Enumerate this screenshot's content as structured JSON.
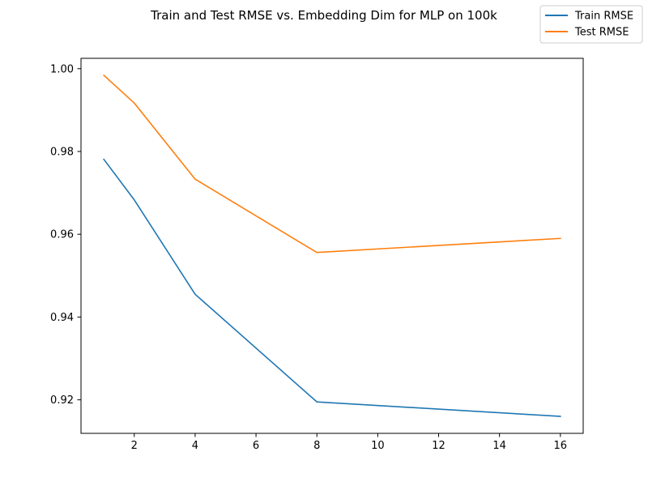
{
  "chart_data": {
    "type": "line",
    "title": "Train and Test RMSE vs. Embedding Dim for MLP on 100k",
    "xlabel": "",
    "ylabel": "",
    "x": [
      1,
      2,
      4,
      8,
      16
    ],
    "series": [
      {
        "name": "Train RMSE",
        "color": "#1f77b4",
        "values": [
          0.9781,
          0.9683,
          0.9455,
          0.9195,
          0.916
        ]
      },
      {
        "name": "Test RMSE",
        "color": "#ff7f0e",
        "values": [
          0.9984,
          0.9917,
          0.9733,
          0.9556,
          0.959
        ]
      }
    ],
    "xlim": [
      0.25,
      16.75
    ],
    "ylim": [
      0.9119,
      1.0025
    ],
    "x_ticks": [
      2,
      4,
      6,
      8,
      10,
      12,
      14,
      16
    ],
    "y_ticks": [
      0.92,
      0.94,
      0.96,
      0.98,
      1.0
    ],
    "y_tick_labels": [
      "0.92",
      "0.94",
      "0.96",
      "0.98",
      "1.00"
    ],
    "grid": false,
    "legend_position": "top-right"
  }
}
